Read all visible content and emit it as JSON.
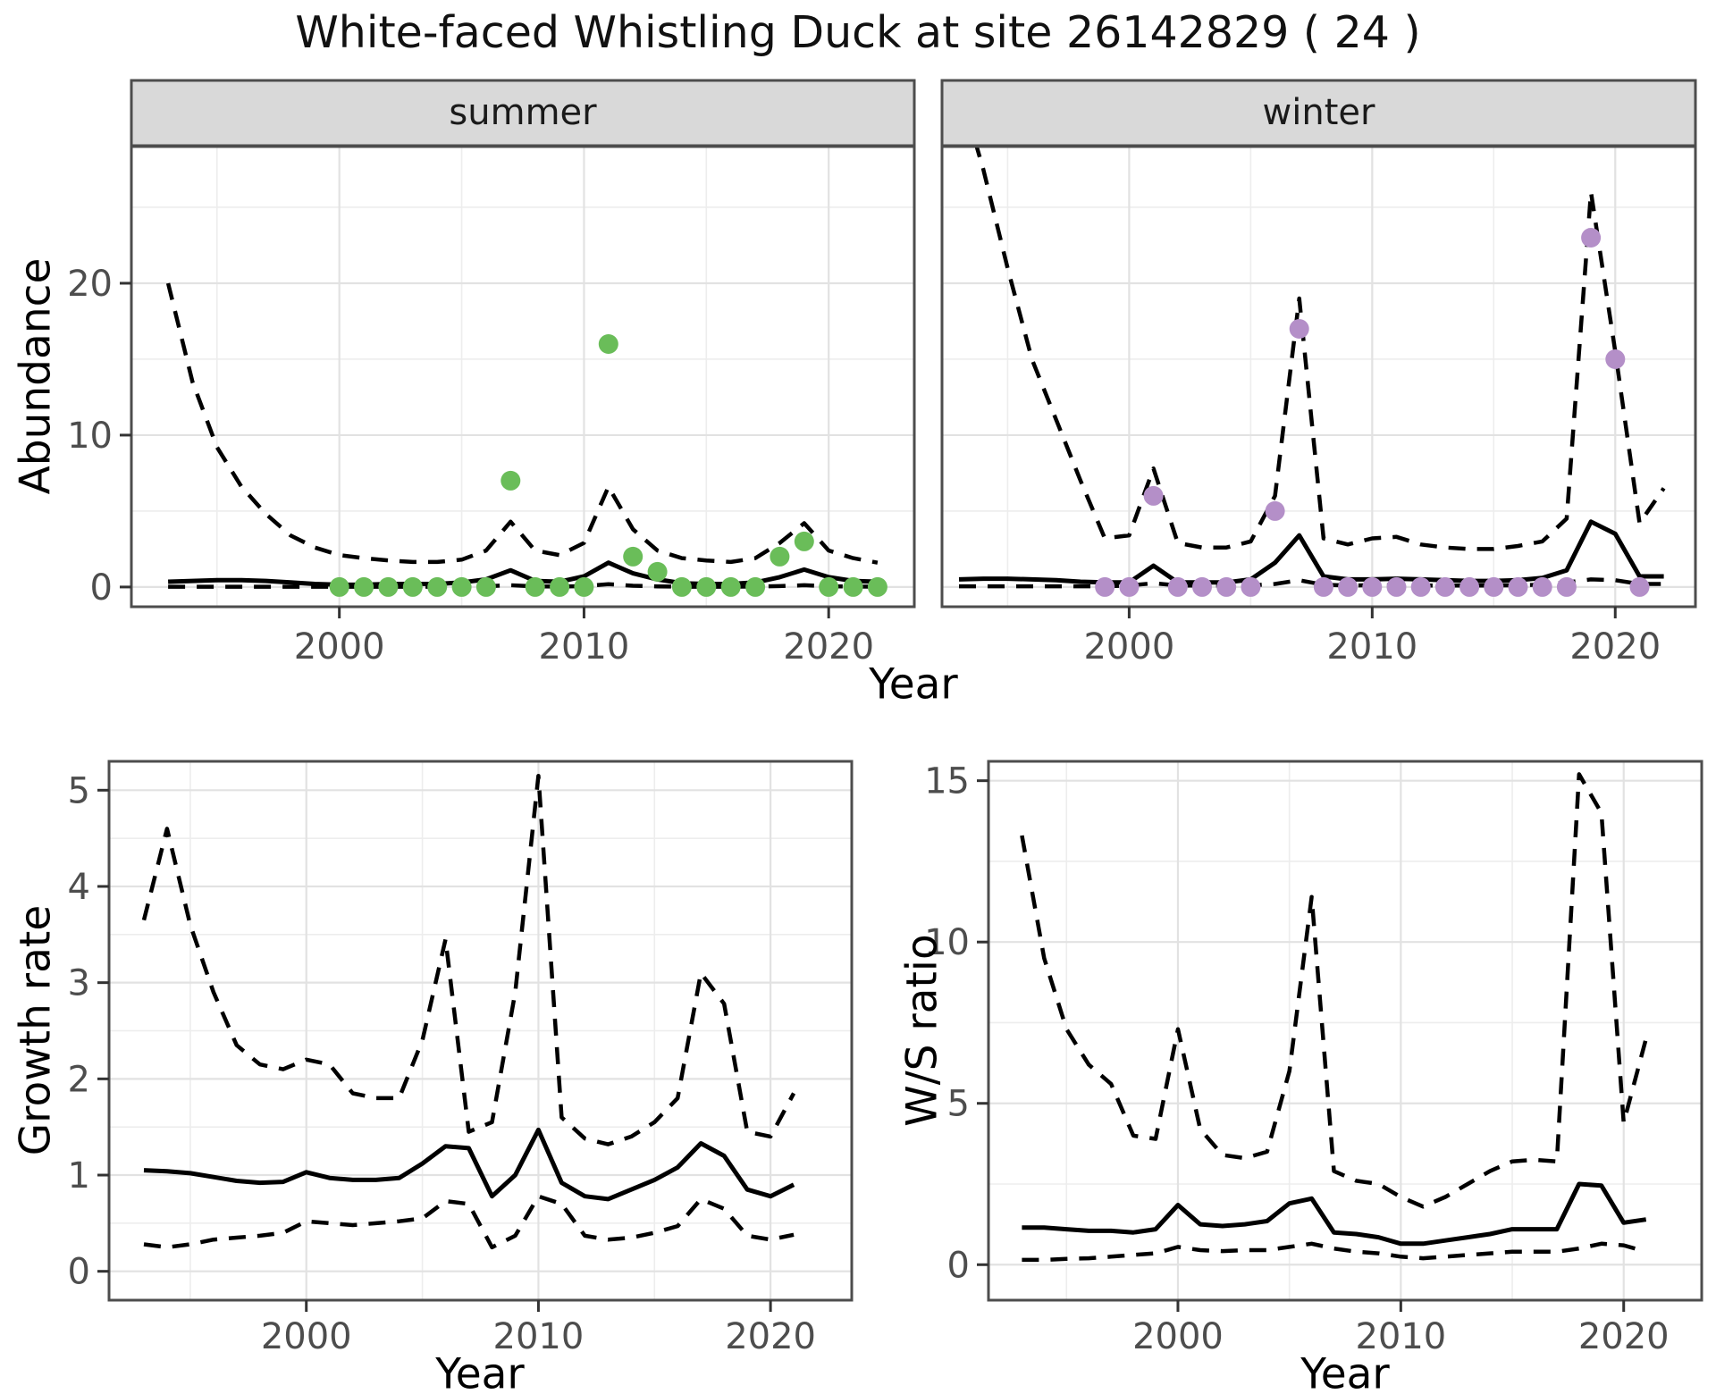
{
  "title": "White-faced Whistling Duck at site 26142829 ( 24 )",
  "facets": [
    {
      "label": "summer"
    },
    {
      "label": "winter"
    }
  ],
  "axis_titles": {
    "abundance": "Abundance",
    "year_top": "Year",
    "growth_rate": "Growth rate",
    "ws_ratio": "W/S ratio",
    "year_growth": "Year",
    "year_ws": "Year"
  },
  "colors": {
    "line": "#000000",
    "observed_summer": "#6ABD59",
    "observed_winter": "#B48FC8",
    "strip_fill": "#D9D9D9",
    "panel_border": "#4D4D4D",
    "grid_major": "#E2E2E2",
    "grid_minor": "#EDEDED",
    "tick_mark": "#333333",
    "tick_text": "#4D4D4D"
  },
  "chart_data": [
    {
      "id": "summer-abundance",
      "type": "line",
      "facet": "summer",
      "ylabel": "Abundance",
      "xlabel": "Year",
      "xlim": [
        1991.5,
        2023.5
      ],
      "ylim": [
        -1.3,
        29
      ],
      "x_ticks": [
        2000,
        2010,
        2020
      ],
      "x_minor": [
        1995,
        2005,
        2015
      ],
      "y_ticks": [
        0,
        10,
        20
      ],
      "y_minor": [
        5,
        15,
        25
      ],
      "show_y_tick_labels": true,
      "years": [
        1993,
        1994,
        1995,
        1996,
        1997,
        1998,
        1999,
        2000,
        2001,
        2002,
        2003,
        2004,
        2005,
        2006,
        2007,
        2008,
        2009,
        2010,
        2011,
        2012,
        2013,
        2014,
        2015,
        2016,
        2017,
        2018,
        2019,
        2020,
        2021,
        2022
      ],
      "series": [
        {
          "name": "fit",
          "style": "solid",
          "values": [
            0.35,
            0.4,
            0.45,
            0.45,
            0.4,
            0.3,
            0.2,
            0.15,
            0.15,
            0.2,
            0.2,
            0.2,
            0.3,
            0.5,
            1.1,
            0.4,
            0.35,
            0.7,
            1.6,
            0.9,
            0.5,
            0.25,
            0.2,
            0.2,
            0.3,
            0.65,
            1.15,
            0.65,
            0.4,
            0.35
          ]
        },
        {
          "name": "upper_ci",
          "style": "dashed",
          "values": [
            20,
            13.5,
            9.2,
            6.6,
            4.8,
            3.4,
            2.6,
            2.1,
            1.9,
            1.75,
            1.65,
            1.65,
            1.8,
            2.4,
            4.3,
            2.4,
            2.1,
            2.9,
            6.6,
            3.8,
            2.4,
            1.9,
            1.75,
            1.65,
            1.9,
            2.9,
            4.2,
            2.4,
            1.9,
            1.6
          ]
        },
        {
          "name": "lower_ci",
          "style": "dashed",
          "values": [
            0.02,
            0.02,
            0.02,
            0.02,
            0.02,
            0.02,
            0.02,
            0.02,
            0.02,
            0.02,
            0.02,
            0.02,
            0.03,
            0.05,
            0.12,
            0.04,
            0.03,
            0.06,
            0.18,
            0.08,
            0.04,
            0.02,
            0.02,
            0.02,
            0.03,
            0.06,
            0.12,
            0.05,
            0.03,
            0.02
          ]
        }
      ],
      "points": {
        "name": "observed-counts-summer",
        "color": "#6ABD59",
        "years": [
          2000,
          2001,
          2002,
          2003,
          2004,
          2005,
          2006,
          2007,
          2008,
          2009,
          2010,
          2011,
          2012,
          2013,
          2014,
          2015,
          2016,
          2017,
          2018,
          2019,
          2020,
          2021,
          2022
        ],
        "values": [
          0,
          0,
          0,
          0,
          0,
          0,
          0,
          7,
          0,
          0,
          0,
          16,
          2,
          1,
          0,
          0,
          0,
          0,
          2,
          3,
          0,
          0,
          0
        ]
      }
    },
    {
      "id": "winter-abundance",
      "type": "line",
      "facet": "winter",
      "ylabel": "Abundance",
      "xlabel": "Year",
      "xlim": [
        1992.3,
        2023.3
      ],
      "ylim": [
        -1.3,
        29
      ],
      "x_ticks": [
        2000,
        2010,
        2020
      ],
      "x_minor": [
        1995,
        2005,
        2015
      ],
      "y_ticks": [
        0,
        10,
        20
      ],
      "y_minor": [
        5,
        15,
        25
      ],
      "show_y_tick_labels": false,
      "years": [
        1993,
        1994,
        1995,
        1996,
        1997,
        1998,
        1999,
        2000,
        2001,
        2002,
        2003,
        2004,
        2005,
        2006,
        2007,
        2008,
        2009,
        2010,
        2011,
        2012,
        2013,
        2014,
        2015,
        2016,
        2017,
        2018,
        2019,
        2020,
        2021,
        2022
      ],
      "series": [
        {
          "name": "fit",
          "style": "solid",
          "values": [
            0.5,
            0.55,
            0.55,
            0.5,
            0.45,
            0.35,
            0.3,
            0.3,
            1.4,
            0.3,
            0.3,
            0.3,
            0.5,
            1.6,
            3.4,
            0.7,
            0.5,
            0.5,
            0.55,
            0.5,
            0.45,
            0.4,
            0.4,
            0.45,
            0.6,
            1.1,
            4.3,
            3.5,
            0.7,
            0.7
          ]
        },
        {
          "name": "upper_ci",
          "style": "dashed",
          "values": [
            33,
            27.5,
            21,
            15,
            11,
            7,
            3.2,
            3.4,
            7.8,
            2.9,
            2.6,
            2.6,
            3.0,
            6.0,
            19,
            3.2,
            2.8,
            3.2,
            3.3,
            2.8,
            2.6,
            2.5,
            2.5,
            2.7,
            3.0,
            4.5,
            26,
            15.5,
            4.2,
            6.5
          ]
        },
        {
          "name": "lower_ci",
          "style": "dashed",
          "values": [
            0.05,
            0.05,
            0.05,
            0.05,
            0.05,
            0.05,
            0.05,
            0.1,
            0.25,
            0.1,
            0.1,
            0.1,
            0.1,
            0.2,
            0.45,
            0.15,
            0.1,
            0.12,
            0.12,
            0.1,
            0.1,
            0.1,
            0.1,
            0.12,
            0.15,
            0.3,
            0.5,
            0.45,
            0.2,
            0.2
          ]
        }
      ],
      "points": {
        "name": "observed-counts-winter",
        "color": "#B48FC8",
        "years": [
          1999,
          2000,
          2001,
          2002,
          2003,
          2004,
          2005,
          2006,
          2007,
          2008,
          2009,
          2010,
          2011,
          2012,
          2013,
          2014,
          2015,
          2016,
          2017,
          2018,
          2019,
          2020,
          2021
        ],
        "values": [
          0,
          0,
          6,
          0,
          0,
          0,
          0,
          5,
          17,
          0,
          0,
          0,
          0,
          0,
          0,
          0,
          0,
          0,
          0,
          0,
          23,
          15,
          0
        ]
      }
    },
    {
      "id": "growth-rate",
      "type": "line",
      "facet": null,
      "ylabel": "Growth rate",
      "xlabel": "Year",
      "xlim": [
        1991.5,
        2023.5
      ],
      "ylim": [
        -0.3,
        5.3
      ],
      "x_ticks": [
        2000,
        2010,
        2020
      ],
      "x_minor": [
        1995,
        2005,
        2015
      ],
      "y_ticks": [
        0,
        1,
        2,
        3,
        4,
        5
      ],
      "y_minor": [
        0.5,
        1.5,
        2.5,
        3.5,
        4.5
      ],
      "show_y_tick_labels": true,
      "years": [
        1993,
        1994,
        1995,
        1996,
        1997,
        1998,
        1999,
        2000,
        2001,
        2002,
        2003,
        2004,
        2005,
        2006,
        2007,
        2008,
        2009,
        2010,
        2011,
        2012,
        2013,
        2014,
        2015,
        2016,
        2017,
        2018,
        2019,
        2020,
        2021
      ],
      "series": [
        {
          "name": "fit",
          "style": "solid",
          "values": [
            1.05,
            1.04,
            1.02,
            0.98,
            0.94,
            0.92,
            0.93,
            1.03,
            0.97,
            0.95,
            0.95,
            0.97,
            1.12,
            1.3,
            1.28,
            0.78,
            1.0,
            1.47,
            0.92,
            0.78,
            0.75,
            0.85,
            0.95,
            1.08,
            1.33,
            1.2,
            0.85,
            0.78,
            0.9
          ]
        },
        {
          "name": "upper_ci",
          "style": "dashed",
          "values": [
            3.65,
            4.6,
            3.6,
            2.9,
            2.35,
            2.15,
            2.1,
            2.2,
            2.15,
            1.85,
            1.8,
            1.8,
            2.4,
            3.45,
            1.45,
            1.55,
            2.9,
            5.15,
            1.6,
            1.38,
            1.32,
            1.4,
            1.55,
            1.8,
            3.1,
            2.78,
            1.45,
            1.4,
            1.85
          ]
        },
        {
          "name": "lower_ci",
          "style": "dashed",
          "values": [
            0.28,
            0.25,
            0.28,
            0.33,
            0.35,
            0.37,
            0.4,
            0.52,
            0.5,
            0.48,
            0.5,
            0.52,
            0.55,
            0.73,
            0.7,
            0.25,
            0.37,
            0.78,
            0.7,
            0.37,
            0.33,
            0.35,
            0.4,
            0.47,
            0.75,
            0.65,
            0.37,
            0.33,
            0.38
          ]
        }
      ],
      "points": null
    },
    {
      "id": "ws-ratio",
      "type": "line",
      "facet": null,
      "ylabel": "W/S ratio",
      "xlabel": "Year",
      "xlim": [
        1991.5,
        2023.5
      ],
      "ylim": [
        -1.1,
        15.6
      ],
      "x_ticks": [
        2000,
        2010,
        2020
      ],
      "x_minor": [
        1995,
        2005,
        2015
      ],
      "y_ticks": [
        0,
        5,
        10,
        15
      ],
      "y_minor": [
        2.5,
        7.5,
        12.5
      ],
      "show_y_tick_labels": true,
      "years": [
        1993,
        1994,
        1995,
        1996,
        1997,
        1998,
        1999,
        2000,
        2001,
        2002,
        2003,
        2004,
        2005,
        2006,
        2007,
        2008,
        2009,
        2010,
        2011,
        2012,
        2013,
        2014,
        2015,
        2016,
        2017,
        2018,
        2019,
        2020,
        2021
      ],
      "series": [
        {
          "name": "fit",
          "style": "solid",
          "values": [
            1.15,
            1.15,
            1.1,
            1.05,
            1.05,
            1.0,
            1.1,
            1.85,
            1.25,
            1.2,
            1.25,
            1.35,
            1.9,
            2.05,
            1.0,
            0.95,
            0.85,
            0.65,
            0.65,
            0.75,
            0.85,
            0.95,
            1.1,
            1.1,
            1.1,
            2.5,
            2.45,
            1.3,
            1.4
          ]
        },
        {
          "name": "upper_ci",
          "style": "dashed",
          "values": [
            13.3,
            9.5,
            7.3,
            6.2,
            5.6,
            4.0,
            3.9,
            7.3,
            4.2,
            3.4,
            3.3,
            3.5,
            6.0,
            11.4,
            2.9,
            2.6,
            2.5,
            2.1,
            1.8,
            2.1,
            2.5,
            2.9,
            3.2,
            3.25,
            3.2,
            15.2,
            14.0,
            4.4,
            7.0
          ]
        },
        {
          "name": "lower_ci",
          "style": "dashed",
          "values": [
            0.15,
            0.15,
            0.18,
            0.2,
            0.25,
            0.3,
            0.35,
            0.55,
            0.45,
            0.42,
            0.45,
            0.45,
            0.55,
            0.65,
            0.5,
            0.4,
            0.35,
            0.25,
            0.2,
            0.25,
            0.3,
            0.35,
            0.4,
            0.4,
            0.4,
            0.5,
            0.65,
            0.6,
            0.4
          ]
        }
      ],
      "points": null
    }
  ]
}
